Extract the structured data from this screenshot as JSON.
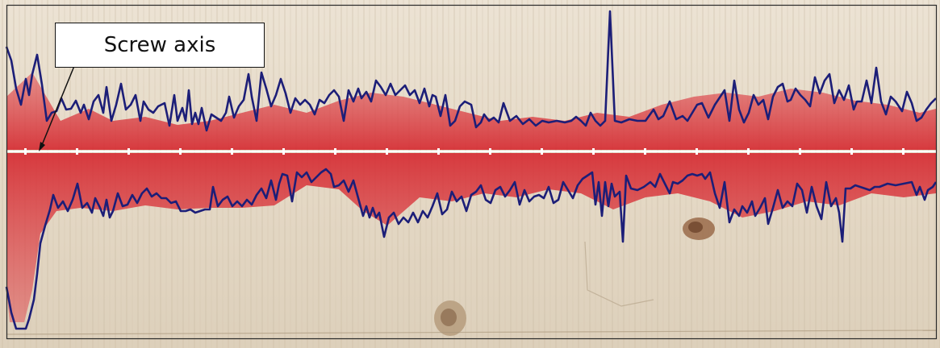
{
  "figure": {
    "annotation_label": "Screw axis"
  },
  "colors": {
    "wood": "#e3d6c2",
    "red_stain": "#d8333c",
    "profile_line": "#1c1e78",
    "axis_line": "#ffffff",
    "frame": "#2a2a2a"
  }
}
